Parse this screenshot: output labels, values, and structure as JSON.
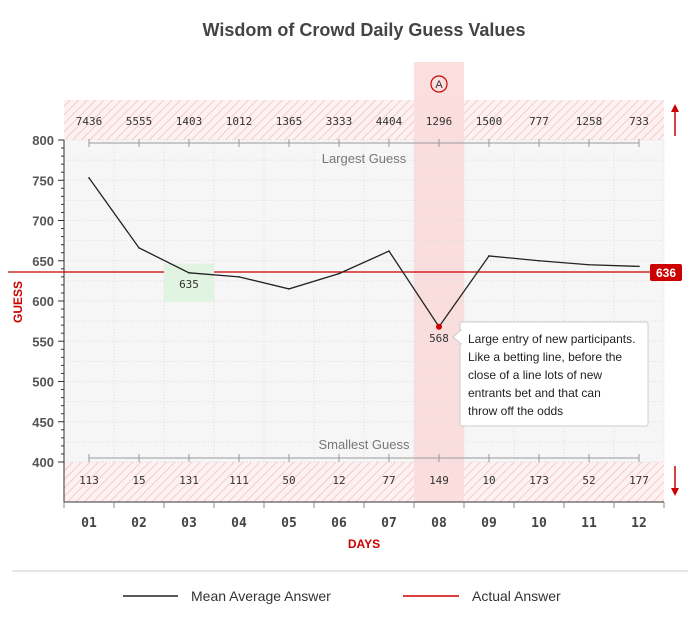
{
  "chart_data": {
    "type": "line",
    "title": "Wisdom of Crowd Daily Guess Values",
    "xlabel": "DAYS",
    "ylabel": "GUESS",
    "categories": [
      "01",
      "02",
      "03",
      "04",
      "05",
      "06",
      "07",
      "08",
      "09",
      "10",
      "11",
      "12"
    ],
    "yticks": [
      "400",
      "450",
      "500",
      "550",
      "600",
      "650",
      "700",
      "750",
      "800"
    ],
    "ylim": [
      400,
      800
    ],
    "grid": true,
    "series": [
      {
        "name": "Mean Average Answer",
        "values": [
          753,
          666,
          635,
          630,
          615,
          634,
          662,
          568,
          656,
          650,
          645,
          643
        ],
        "color": "#222222"
      }
    ],
    "reference_line": {
      "name": "Actual Answer",
      "value": 636,
      "label": "636",
      "color": "#cc0000"
    },
    "largest_guess": {
      "label": "Largest Guess",
      "values": [
        "7436",
        "5555",
        "1403",
        "1012",
        "1365",
        "3333",
        "4404",
        "1296",
        "1500",
        "777",
        "1258",
        "733"
      ]
    },
    "smallest_guess": {
      "label": "Smallest Guess",
      "values": [
        "113",
        "15",
        "131",
        "111",
        "50",
        "12",
        "77",
        "149",
        "10",
        "173",
        "52",
        "177"
      ]
    },
    "highlight_day": {
      "marker": "A",
      "day_index": 7,
      "color": "#fbdcdc"
    },
    "point_labels": [
      {
        "day_index": 2,
        "text": "635",
        "color": "#e1f3e1"
      },
      {
        "day_index": 7,
        "text": "568"
      }
    ],
    "annotation": {
      "day_index": 7,
      "lines": [
        "Large entry of new participants.",
        "Like a betting line, before the",
        "close of a line lots of new",
        "entrants bet and that can",
        "throw off the odds"
      ]
    },
    "legend": {
      "placement": "bottom",
      "entries": [
        {
          "label": "Mean Average Answer",
          "color": "#222222"
        },
        {
          "label": "Actual Answer",
          "color": "#cc0000"
        }
      ]
    }
  }
}
